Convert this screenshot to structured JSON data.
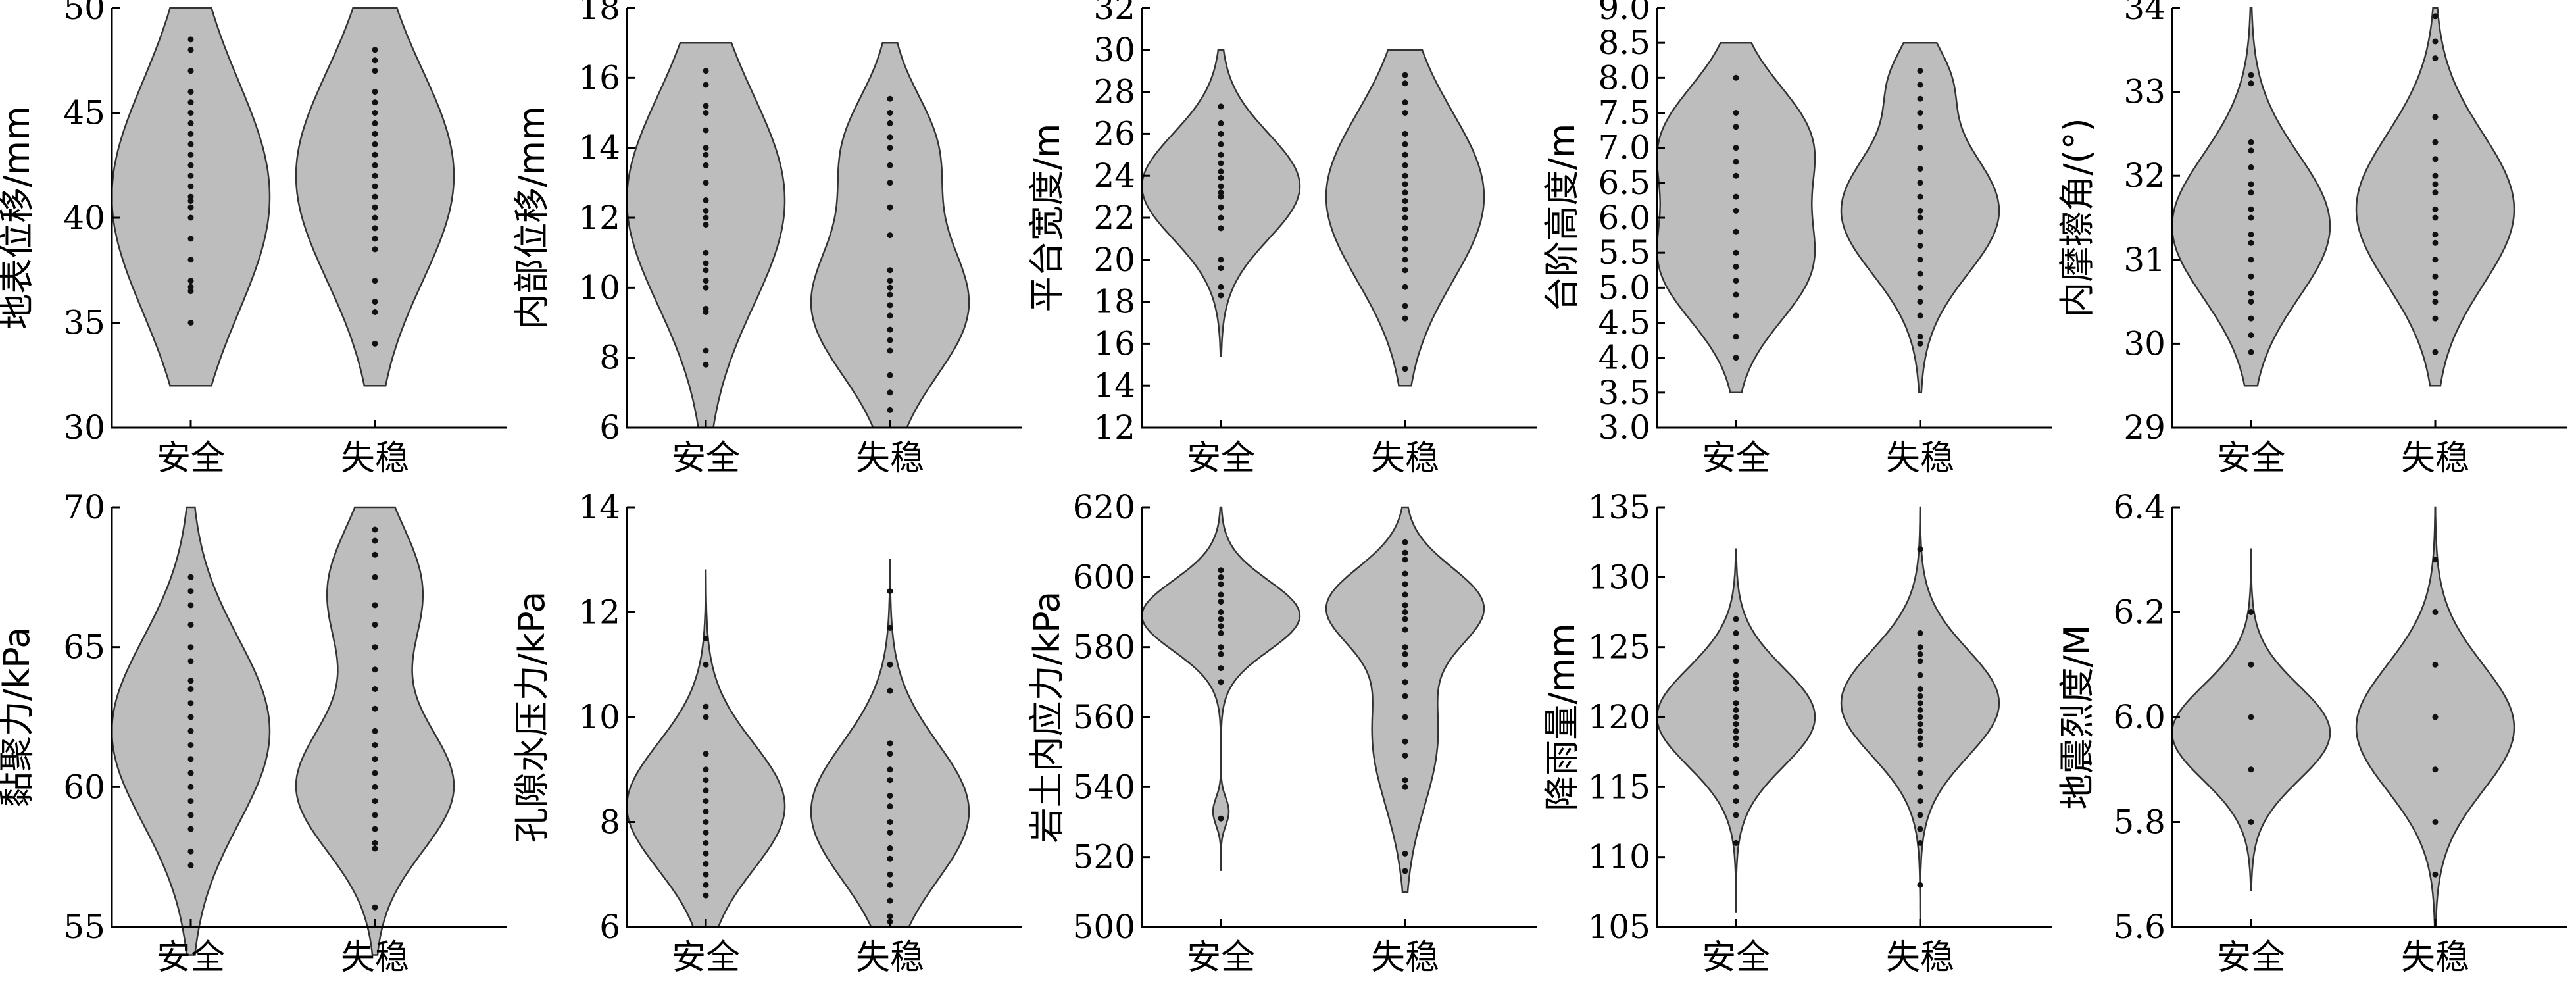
{
  "chart_data": [
    {
      "type": "violin",
      "ylabel": "地表位移/mm",
      "ylim": [
        30,
        50
      ],
      "yticks": [
        30,
        35,
        40,
        45,
        50
      ],
      "categories": [
        "安全",
        "失稳"
      ],
      "series": [
        {
          "range": [
            32,
            50
          ],
          "modes": [
            [
              41,
              5.5,
              1
            ]
          ],
          "points": [
            48.5,
            48,
            47,
            46,
            45.5,
            45,
            44.5,
            44,
            43.5,
            43,
            42.5,
            42,
            41.5,
            41,
            40.8,
            40.5,
            40,
            39,
            38,
            37,
            36.7,
            36.5,
            35
          ]
        },
        {
          "range": [
            32,
            50
          ],
          "modes": [
            [
              42,
              5.0,
              1
            ]
          ],
          "points": [
            48,
            47.5,
            47,
            46,
            45.5,
            45,
            44.5,
            44,
            43.5,
            43,
            42.5,
            42,
            41.5,
            41,
            40.5,
            40,
            39.5,
            39,
            38.5,
            37,
            36,
            35.5,
            34
          ]
        }
      ]
    },
    {
      "type": "violin",
      "ylabel": "内部位移/mm",
      "ylim": [
        6,
        18
      ],
      "yticks": [
        6,
        8,
        10,
        12,
        14,
        16,
        18
      ],
      "categories": [
        "安全",
        "失稳"
      ],
      "series": [
        {
          "range": [
            6,
            17
          ],
          "modes": [
            [
              12.5,
              3.0,
              1
            ]
          ],
          "points": [
            16.2,
            15.8,
            15.2,
            15,
            14.5,
            14,
            13.8,
            13.5,
            13,
            12.5,
            12.2,
            12,
            11.8,
            11,
            10.7,
            10.5,
            10.2,
            10,
            9.4,
            9.3,
            8.2,
            7.8
          ]
        },
        {
          "range": [
            6,
            17
          ],
          "modes": [
            [
              9.5,
              2.0,
              1
            ],
            [
              14,
              1.6,
              0.55
            ]
          ],
          "points": [
            15.4,
            15,
            14.7,
            14.3,
            14,
            13.5,
            13,
            12.3,
            11.5,
            10.5,
            10.2,
            10,
            9.8,
            9.5,
            9.2,
            8.8,
            8.5,
            8.2,
            7.5,
            7,
            6.5
          ]
        }
      ]
    },
    {
      "type": "violin",
      "ylabel": "平台宽度/m",
      "ylim": [
        12,
        32
      ],
      "yticks": [
        12,
        14,
        16,
        18,
        20,
        22,
        24,
        26,
        28,
        30,
        32
      ],
      "categories": [
        "安全",
        "失稳"
      ],
      "series": [
        {
          "range": [
            15.4,
            30
          ],
          "modes": [
            [
              23.5,
              2.5,
              1
            ]
          ],
          "points": [
            27.3,
            26.5,
            26,
            25.5,
            25,
            24.6,
            24.2,
            23.9,
            23.5,
            23.2,
            23,
            22.5,
            22,
            21.5,
            20,
            19.6,
            18.7,
            18.3
          ]
        },
        {
          "range": [
            14,
            30
          ],
          "modes": [
            [
              23,
              4.0,
              1
            ]
          ],
          "points": [
            28.8,
            28.4,
            27.5,
            27,
            26,
            25.5,
            25,
            24.5,
            24,
            23.6,
            23.2,
            22.8,
            22.4,
            22,
            21.5,
            21,
            20.5,
            20,
            19.5,
            18.7,
            17.8,
            17.2,
            14.8
          ]
        }
      ]
    },
    {
      "type": "violin",
      "ylabel": "台阶高度/m",
      "ylim": [
        3,
        9
      ],
      "yticks": [
        3.0,
        3.5,
        4.0,
        4.5,
        5.0,
        5.5,
        6.0,
        6.5,
        7.0,
        7.5,
        8.0,
        8.5,
        9.0
      ],
      "categories": [
        "安全",
        "失稳"
      ],
      "series": [
        {
          "range": [
            3.5,
            8.5
          ],
          "modes": [
            [
              5.3,
              0.8,
              1
            ],
            [
              7.1,
              0.8,
              1
            ]
          ],
          "points": [
            8,
            7.5,
            7.3,
            7,
            6.8,
            6.6,
            6.3,
            6.1,
            5.8,
            5.5,
            5.3,
            5.1,
            4.9,
            4.6,
            4.3,
            4
          ]
        },
        {
          "range": [
            3.5,
            8.5
          ],
          "modes": [
            [
              6.1,
              0.9,
              1
            ],
            [
              8.0,
              0.5,
              0.3
            ]
          ],
          "points": [
            8.1,
            7.9,
            7.7,
            7.5,
            7.3,
            7,
            6.7,
            6.5,
            6.3,
            6.1,
            6,
            5.8,
            5.6,
            5.4,
            5.2,
            5,
            4.8,
            4.6,
            4.3,
            4.2
          ]
        }
      ]
    },
    {
      "type": "violin",
      "ylabel": "内摩擦角/(°)",
      "ylim": [
        29,
        34
      ],
      "yticks": [
        29,
        30,
        31,
        32,
        33,
        34
      ],
      "categories": [
        "安全",
        "失稳"
      ],
      "series": [
        {
          "range": [
            29.5,
            34
          ],
          "modes": [
            [
              31.4,
              0.85,
              1
            ]
          ],
          "points": [
            33.2,
            33.1,
            32.4,
            32.3,
            32.1,
            31.9,
            31.8,
            31.6,
            31.5,
            31.3,
            31.2,
            31,
            30.8,
            30.6,
            30.5,
            30.3,
            30.1,
            29.9
          ]
        },
        {
          "range": [
            29.5,
            34
          ],
          "modes": [
            [
              31.6,
              0.9,
              1
            ]
          ],
          "points": [
            33.9,
            33.6,
            33.4,
            32.7,
            32.4,
            32.2,
            32,
            31.9,
            31.8,
            31.6,
            31.5,
            31.3,
            31.2,
            31,
            30.8,
            30.6,
            30.5,
            30.3,
            29.9
          ]
        }
      ]
    },
    {
      "type": "violin",
      "ylabel": "黏聚力/kPa",
      "ylim": [
        55,
        70
      ],
      "yticks": [
        55,
        60,
        65,
        70
      ],
      "categories": [
        "安全",
        "失稳"
      ],
      "series": [
        {
          "range": [
            54,
            70
          ],
          "modes": [
            [
              62,
              3.3,
              1
            ]
          ],
          "points": [
            67.5,
            67,
            66.5,
            65.8,
            65,
            64.5,
            63.8,
            63.5,
            63,
            62.5,
            62,
            61.5,
            61,
            60.5,
            60,
            59.5,
            59,
            58.5,
            57.7,
            57.2
          ]
        },
        {
          "range": [
            54,
            70
          ],
          "modes": [
            [
              60,
              2.3,
              1
            ],
            [
              67,
              2.3,
              0.6
            ]
          ],
          "points": [
            69.2,
            68.8,
            68.3,
            67.5,
            66.5,
            65.8,
            65,
            64.2,
            63.5,
            62.8,
            62,
            61.5,
            61,
            60.5,
            60,
            59.5,
            59,
            58.5,
            58,
            57.8,
            55.7
          ]
        }
      ]
    },
    {
      "type": "violin",
      "ylabel": "孔隙水压力/kPa",
      "ylim": [
        6,
        14
      ],
      "yticks": [
        6,
        8,
        10,
        12,
        14
      ],
      "categories": [
        "安全",
        "失稳"
      ],
      "series": [
        {
          "range": [
            6,
            12.8
          ],
          "modes": [
            [
              8.3,
              1.2,
              1
            ]
          ],
          "points": [
            11.5,
            11,
            10.2,
            10,
            9.3,
            9,
            8.8,
            8.6,
            8.4,
            8.2,
            8,
            7.8,
            7.6,
            7.4,
            7.2,
            7,
            6.8,
            6.6
          ]
        },
        {
          "range": [
            6,
            13
          ],
          "modes": [
            [
              8.2,
              1.3,
              1
            ]
          ],
          "points": [
            12.4,
            11.7,
            11,
            10.5,
            9.5,
            9.3,
            9,
            8.8,
            8.5,
            8.3,
            8,
            7.8,
            7.5,
            7.3,
            7,
            6.8,
            6.5,
            6.2,
            6.1
          ]
        }
      ]
    },
    {
      "type": "violin",
      "ylabel": "岩土内应力/kPa",
      "ylim": [
        500,
        620
      ],
      "yticks": [
        500,
        520,
        540,
        560,
        580,
        600,
        620
      ],
      "categories": [
        "安全",
        "失稳"
      ],
      "series": [
        {
          "range": [
            516,
            620
          ],
          "modes": [
            [
              589,
              10,
              1
            ],
            [
              533,
              4,
              0.1
            ]
          ],
          "points": [
            602,
            600,
            598,
            595,
            593,
            590,
            588,
            586,
            584,
            580,
            578,
            574,
            570,
            531
          ]
        },
        {
          "range": [
            510,
            620
          ],
          "modes": [
            [
              592,
              11,
              1
            ],
            [
              555,
              20,
              0.45
            ]
          ],
          "points": [
            610,
            607,
            605,
            601,
            598,
            595,
            592,
            590,
            588,
            585,
            580,
            578,
            575,
            570,
            566,
            560,
            553,
            549,
            542,
            540,
            521,
            516
          ]
        }
      ]
    },
    {
      "type": "violin",
      "ylabel": "降雨量/mm",
      "ylim": [
        105,
        135
      ],
      "yticks": [
        105,
        110,
        115,
        120,
        125,
        130,
        135
      ],
      "categories": [
        "安全",
        "失稳"
      ],
      "series": [
        {
          "range": [
            106,
            132
          ],
          "modes": [
            [
              120,
              3.5,
              1
            ]
          ],
          "points": [
            127,
            126,
            125,
            124,
            123,
            122.5,
            122,
            121,
            120.5,
            120,
            119.5,
            119,
            118.5,
            118,
            117,
            116,
            115,
            114,
            113,
            111
          ]
        },
        {
          "range": [
            105,
            135
          ],
          "modes": [
            [
              121,
              3.8,
              1
            ]
          ],
          "points": [
            132,
            126,
            125,
            124.5,
            124,
            123,
            122,
            121.5,
            121,
            120.5,
            120,
            119.5,
            119,
            118.5,
            118,
            117,
            116,
            115,
            114,
            113,
            112,
            111,
            108
          ]
        }
      ]
    },
    {
      "type": "violin",
      "ylabel": "地震烈度/M",
      "ylim": [
        5.6,
        6.4
      ],
      "yticks": [
        5.6,
        5.8,
        6.0,
        6.2,
        6.4
      ],
      "categories": [
        "安全",
        "失稳"
      ],
      "series": [
        {
          "range": [
            5.67,
            6.32
          ],
          "modes": [
            [
              5.97,
              0.09,
              1
            ]
          ],
          "points": [
            6.2,
            6.1,
            6.0,
            5.9,
            5.8
          ]
        },
        {
          "range": [
            5.6,
            6.4
          ],
          "modes": [
            [
              5.98,
              0.12,
              1
            ]
          ],
          "points": [
            6.3,
            6.2,
            6.1,
            6.0,
            5.9,
            5.8,
            5.7
          ]
        }
      ]
    }
  ]
}
